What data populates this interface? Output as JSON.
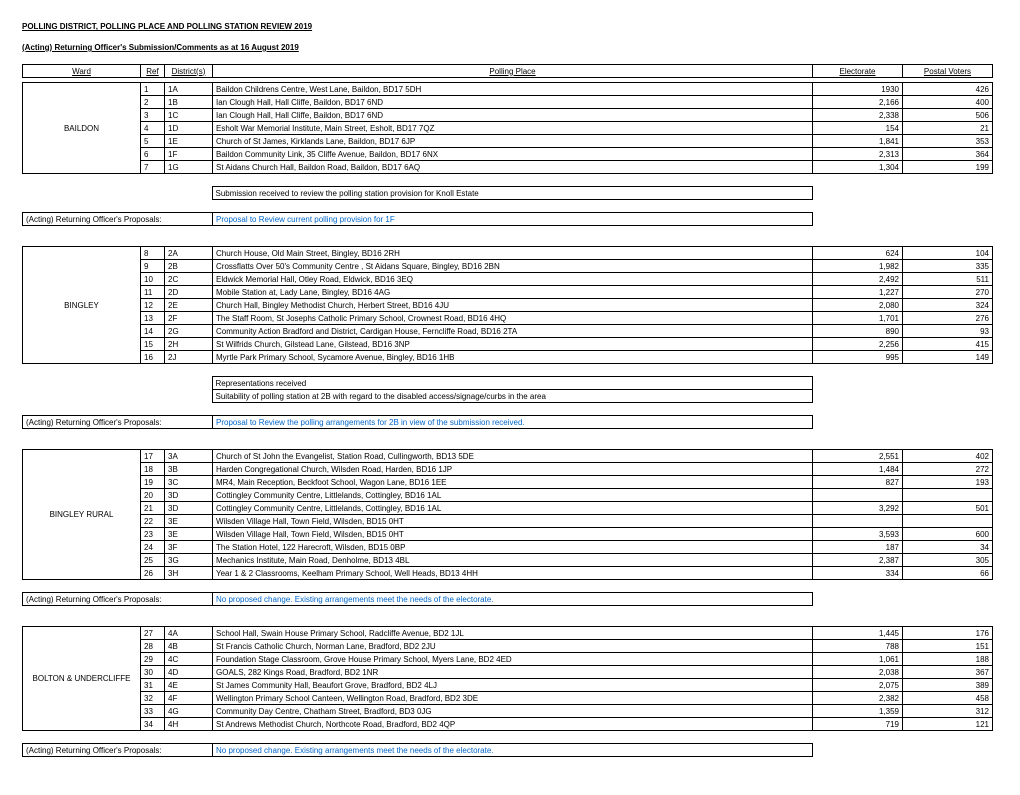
{
  "title": "POLLING DISTRICT, POLLING PLACE AND POLLING STATION REVIEW 2019",
  "subtitle": "(Acting) Returning Officer's Submission/Comments as at 16 August 2019",
  "headers": {
    "ward": "Ward",
    "ref": "Ref",
    "district": "District(s)",
    "place": "Polling Place",
    "electorate": "Electorate",
    "postal": "Postal Voters"
  },
  "labels": {
    "proposals": "(Acting) Returning Officer's Proposals:"
  },
  "sections": [
    {
      "ward": "BAILDON",
      "rows": [
        {
          "ref": "1",
          "dist": "1A",
          "place": "Baildon Childrens Centre, West Lane, Baildon, BD17 5DH",
          "elec": "1930",
          "post": "426"
        },
        {
          "ref": "2",
          "dist": "1B",
          "place": "Ian Clough Hall, Hall Cliffe, Baildon, BD17 6ND",
          "elec": "2,166",
          "post": "400"
        },
        {
          "ref": "3",
          "dist": "1C",
          "place": "Ian Clough Hall, Hall Cliffe, Baildon, BD17 6ND",
          "elec": "2,338",
          "post": "506"
        },
        {
          "ref": "4",
          "dist": "1D",
          "place": "Esholt War Memorial Institute, Main Street, Esholt, BD17 7QZ",
          "elec": "154",
          "post": "21"
        },
        {
          "ref": "5",
          "dist": "1E",
          "place": "Church of St James, Kirklands Lane, Baildon, BD17 6JP",
          "elec": "1,841",
          "post": "353"
        },
        {
          "ref": "6",
          "dist": "1F",
          "place": "Baildon Community Link, 35 Cliffe Avenue, Baildon, BD17 6NX",
          "elec": "2,313",
          "post": "364"
        },
        {
          "ref": "7",
          "dist": "1G",
          "place": "St Aidans Church Hall, Baildon Road, Baildon, BD17 6AQ",
          "elec": "1,304",
          "post": "199"
        }
      ],
      "notes": [
        "Submission received to review the polling station provision for Knoll Estate"
      ],
      "proposal": "Proposal to Review current polling provision for 1F",
      "proposal_blue": true
    },
    {
      "ward": "BINGLEY",
      "rows": [
        {
          "ref": "8",
          "dist": "2A",
          "place": "Church House, Old Main Street, Bingley, BD16 2RH",
          "elec": "624",
          "post": "104"
        },
        {
          "ref": "9",
          "dist": "2B",
          "place": "Crossflatts Over 50's Community Centre , St Aidans Square, Bingley, BD16 2BN",
          "elec": "1,982",
          "post": "335"
        },
        {
          "ref": "10",
          "dist": "2C",
          "place": "Eldwick Memorial Hall, Otley Road, Eldwick, BD16 3EQ",
          "elec": "2,492",
          "post": "511"
        },
        {
          "ref": "11",
          "dist": "2D",
          "place": "Mobile Station at, Lady Lane, Bingley, BD16 4AG",
          "elec": "1,227",
          "post": "270"
        },
        {
          "ref": "12",
          "dist": "2E",
          "place": "Church Hall, Bingley Methodist Church, Herbert Street, BD16 4JU",
          "elec": "2,080",
          "post": "324"
        },
        {
          "ref": "13",
          "dist": "2F",
          "place": "The Staff Room, St Josephs Catholic Primary School, Crownest Road, BD16 4HQ",
          "elec": "1,701",
          "post": "276"
        },
        {
          "ref": "14",
          "dist": "2G",
          "place": "Community Action Bradford and District, Cardigan House, Ferncliffe Road, BD16 2TA",
          "elec": "890",
          "post": "93"
        },
        {
          "ref": "15",
          "dist": "2H",
          "place": "St Wilfrids Church, Gilstead Lane, Gilstead, BD16 3NP",
          "elec": "2,256",
          "post": "415"
        },
        {
          "ref": "16",
          "dist": "2J",
          "place": "Myrtle Park Primary School, Sycamore Avenue, Bingley, BD16 1HB",
          "elec": "995",
          "post": "149"
        }
      ],
      "notes": [
        "Representations received",
        "Suitability of polling station at 2B with regard to the disabled access/signage/curbs in the area"
      ],
      "proposal": "Proposal to Review the polling arrangements for 2B in view of the submission received.",
      "proposal_blue": true
    },
    {
      "ward": "BINGLEY RURAL",
      "rows": [
        {
          "ref": "17",
          "dist": "3A",
          "place": "Church of St John the Evangelist, Station Road, Cullingworth, BD13 5DE",
          "elec": "2,551",
          "post": "402"
        },
        {
          "ref": "18",
          "dist": "3B",
          "place": "Harden Congregational Church, Wilsden Road, Harden, BD16 1JP",
          "elec": "1,484",
          "post": "272"
        },
        {
          "ref": "19",
          "dist": "3C",
          "place": "MR4, Main Reception, Beckfoot School, Wagon Lane, BD16 1EE",
          "elec": "827",
          "post": "193"
        },
        {
          "ref": "20",
          "dist": "3D",
          "place": "Cottingley Community Centre, Littlelands, Cottingley, BD16 1AL",
          "elec": "",
          "post": ""
        },
        {
          "ref": "21",
          "dist": "3D",
          "place": "Cottingley Community Centre, Littlelands, Cottingley, BD16 1AL",
          "elec": "3,292",
          "post": "501"
        },
        {
          "ref": "22",
          "dist": "3E",
          "place": "Wilsden Village Hall, Town Field, Wilsden, BD15 0HT",
          "elec": "",
          "post": ""
        },
        {
          "ref": "23",
          "dist": "3E",
          "place": "Wilsden Village Hall, Town Field, Wilsden, BD15 0HT",
          "elec": "3,593",
          "post": "600"
        },
        {
          "ref": "24",
          "dist": "3F",
          "place": "The Station Hotel, 122 Harecroft, Wilsden, BD15 0BP",
          "elec": "187",
          "post": "34"
        },
        {
          "ref": "25",
          "dist": "3G",
          "place": "Mechanics Institute, Main Road, Denholme, BD13 4BL",
          "elec": "2,387",
          "post": "305"
        },
        {
          "ref": "26",
          "dist": "3H",
          "place": "Year 1 & 2 Classrooms, Keelham Primary School, Well Heads, BD13 4HH",
          "elec": "334",
          "post": "66"
        }
      ],
      "notes": [],
      "proposal": "No proposed change.  Existing arrangements meet the needs of the electorate.",
      "proposal_blue": true
    },
    {
      "ward": "BOLTON & UNDERCLIFFE",
      "rows": [
        {
          "ref": "27",
          "dist": "4A",
          "place": "School Hall, Swain House Primary School, Radcliffe Avenue, BD2 1JL",
          "elec": "1,445",
          "post": "176"
        },
        {
          "ref": "28",
          "dist": "4B",
          "place": "St Francis Catholic Church, Norman Lane, Bradford, BD2 2JU",
          "elec": "788",
          "post": "151"
        },
        {
          "ref": "29",
          "dist": "4C",
          "place": "Foundation Stage Classroom, Grove House Primary School, Myers Lane, BD2 4ED",
          "elec": "1,061",
          "post": "188"
        },
        {
          "ref": "30",
          "dist": "4D",
          "place": "GOALS, 282 Kings Road, Bradford, BD2 1NR",
          "elec": "2,038",
          "post": "367"
        },
        {
          "ref": "31",
          "dist": "4E",
          "place": "St James Community Hall, Beaufort Grove, Bradford, BD2 4LJ",
          "elec": "2,075",
          "post": "389"
        },
        {
          "ref": "32",
          "dist": "4F",
          "place": "Wellington Primary School Canteen, Wellington Road, Bradford, BD2 3DE",
          "elec": "2,382",
          "post": "458"
        },
        {
          "ref": "33",
          "dist": "4G",
          "place": "Community Day Centre, Chatham Street, Bradford, BD3 0JG",
          "elec": "1,359",
          "post": "312"
        },
        {
          "ref": "34",
          "dist": "4H",
          "place": "St Andrews Methodist Church, Northcote Road, Bradford, BD2 4QP",
          "elec": "719",
          "post": "121"
        }
      ],
      "notes": [],
      "proposal": "No proposed change.  Existing arrangements meet the needs of the electorate.",
      "proposal_blue": true
    }
  ]
}
